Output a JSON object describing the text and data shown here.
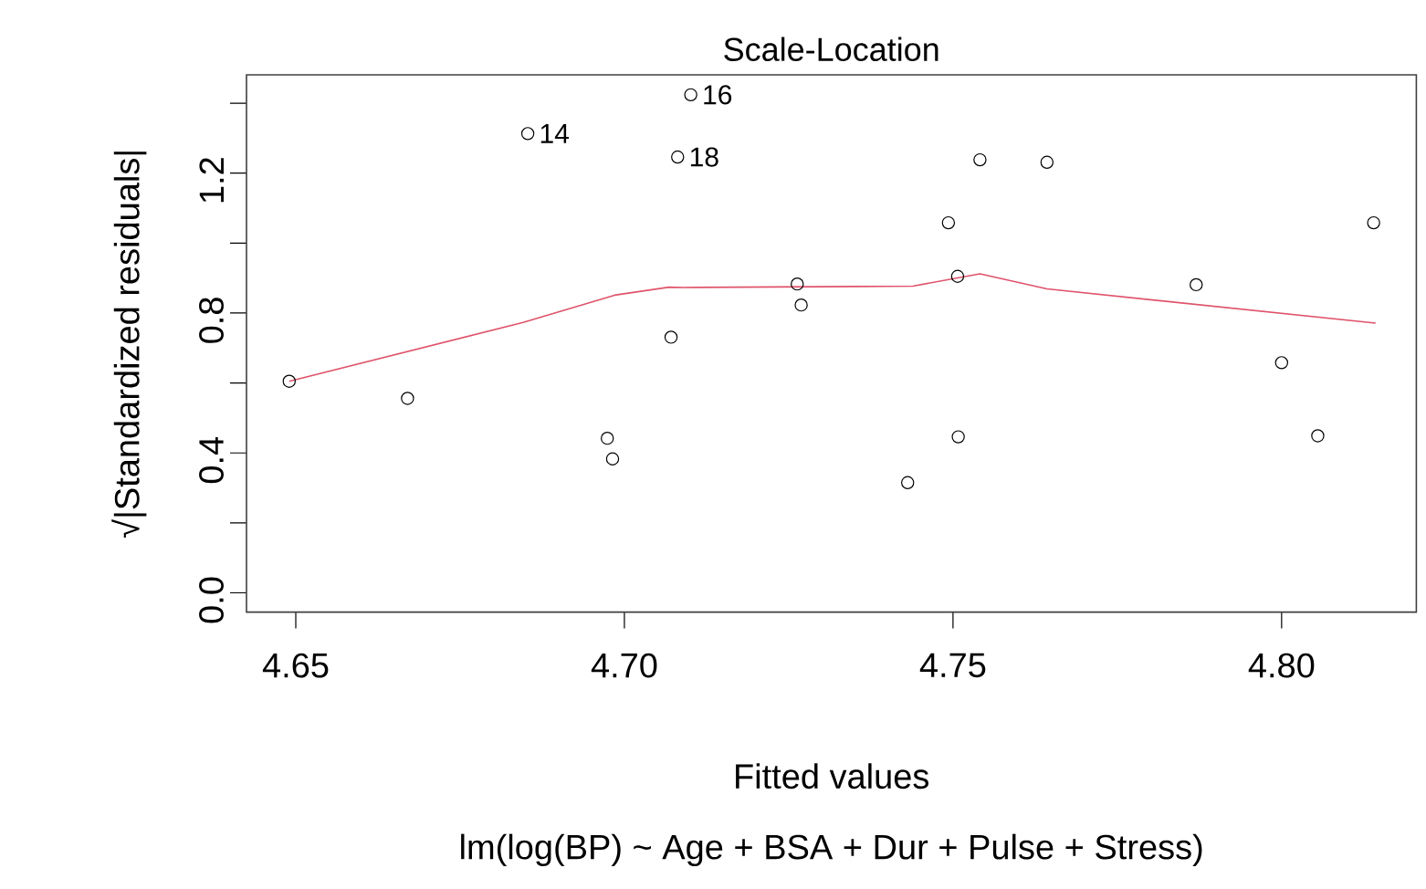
{
  "chart_data": {
    "type": "scatter",
    "title": "Scale-Location",
    "subtitle": "lm(log(BP) ~ Age + BSA + Dur + Pulse + Stress)",
    "xlabel": "Fitted values",
    "ylabel": "√|Standardized residuals|",
    "xlim": [
      4.6425,
      4.8205
    ],
    "ylim": [
      -0.055,
      1.481
    ],
    "xticks": [
      4.65,
      {
        "value": 4.7,
        "label": "4.70"
      },
      4.75,
      {
        "value": 4.8,
        "label": "4.80"
      }
    ],
    "yticks": [
      {
        "value": 0,
        "label": "0.0"
      },
      {
        "value": 0.2,
        "label": null
      },
      0.4,
      {
        "value": 0.6,
        "label": null
      },
      0.8,
      {
        "value": 1.0,
        "label": null
      },
      1.2,
      {
        "value": 1.4,
        "label": null
      }
    ],
    "marker": "circle",
    "series": [
      {
        "color": "#000000",
        "x": [
          4.649,
          4.667,
          4.6853,
          4.6974,
          4.6982,
          4.7071,
          4.7081,
          4.7101,
          4.7263,
          4.7269,
          4.7431,
          4.7493,
          4.7507,
          4.7508,
          4.7541,
          4.7643,
          4.787,
          4.8,
          4.8055,
          4.814
        ],
        "values": [
          0.605,
          0.556,
          1.313,
          0.442,
          0.383,
          0.731,
          1.246,
          1.424,
          0.883,
          0.823,
          0.315,
          1.058,
          0.905,
          0.446,
          1.238,
          1.231,
          0.881,
          0.658,
          0.449,
          1.058
        ]
      },
      {
        "type": "line",
        "color": "#df536b",
        "marker": "none",
        "line_style": "solid",
        "x": [
          4.649,
          4.6846,
          4.6985,
          4.7068,
          4.709,
          4.7356,
          4.7439,
          4.7541,
          4.7643,
          4.8143
        ],
        "values": [
          0.605,
          0.773,
          0.851,
          0.874,
          0.873,
          0.876,
          0.877,
          0.912,
          0.869,
          0.771
        ]
      }
    ],
    "annotations": [
      {
        "text": "14",
        "x": 4.6853,
        "y": 1.313
      },
      {
        "text": "18",
        "x": 4.7081,
        "y": 1.246
      },
      {
        "text": "16",
        "x": 4.7101,
        "y": 1.424
      }
    ]
  }
}
